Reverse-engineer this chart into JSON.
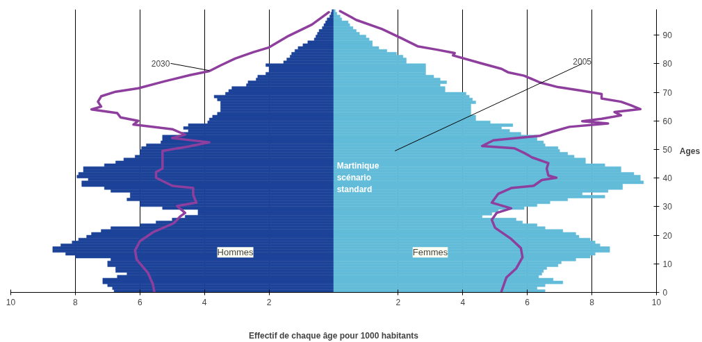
{
  "chart_data": {
    "type": "bar",
    "orientation": "horizontal",
    "xlabel": "Effectif de chaque âge pour 1000 habitants",
    "ylabel": "Ages",
    "x": [
      0,
      1,
      2,
      3,
      4,
      5,
      6,
      7,
      8,
      9,
      10,
      11,
      12,
      13,
      14,
      15,
      16,
      17,
      18,
      19,
      20,
      21,
      22,
      23,
      24,
      25,
      26,
      27,
      28,
      29,
      30,
      31,
      32,
      33,
      34,
      35,
      36,
      37,
      38,
      39,
      40,
      41,
      42,
      43,
      44,
      45,
      46,
      47,
      48,
      49,
      50,
      51,
      52,
      53,
      54,
      55,
      56,
      57,
      58,
      59,
      60,
      61,
      62,
      63,
      64,
      65,
      66,
      67,
      68,
      69,
      70,
      71,
      72,
      73,
      74,
      75,
      76,
      77,
      78,
      79,
      80,
      81,
      82,
      83,
      84,
      85,
      86,
      87,
      88,
      89,
      90,
      91,
      92,
      93,
      94,
      95,
      96,
      97,
      98
    ],
    "xlim": [
      -10,
      10
    ],
    "xticks": [
      {
        "value": -10,
        "label": "10"
      },
      {
        "value": -8,
        "label": "8"
      },
      {
        "value": -6,
        "label": "6"
      },
      {
        "value": -4,
        "label": "4"
      },
      {
        "value": -2,
        "label": "2"
      },
      2,
      4,
      6,
      8,
      10
    ],
    "ylim": [
      0,
      99
    ],
    "yticks": [
      0,
      10,
      20,
      30,
      40,
      50,
      60,
      70,
      80,
      90
    ],
    "grid": "x",
    "stacked": true,
    "series": [
      {
        "name": "Hommes",
        "color": "#1c4398",
        "values": [
          -6.8,
          -6.85,
          -7.0,
          -7.15,
          -7.15,
          -6.7,
          -6.4,
          -6.75,
          -6.75,
          -7.0,
          -7.0,
          -6.9,
          -8.0,
          -8.3,
          -8.7,
          -8.7,
          -8.45,
          -8.1,
          -7.9,
          -7.65,
          -7.5,
          -7.2,
          -6.9,
          -6.0,
          -5.5,
          -5.0,
          -4.6,
          -4.2,
          -4.2,
          -5.3,
          -6.0,
          -6.0,
          -6.4,
          -6.3,
          -6.3,
          -6.9,
          -7.1,
          -7.8,
          -7.8,
          -7.6,
          -7.95,
          -7.9,
          -7.75,
          -7.75,
          -7.1,
          -6.75,
          -6.5,
          -6.15,
          -6.0,
          -6.0,
          -5.95,
          -5.8,
          -5.35,
          -5.3,
          -5.3,
          -4.7,
          -4.5,
          -4.65,
          -4.5,
          -3.9,
          -3.85,
          -3.75,
          -3.6,
          -3.5,
          -3.5,
          -3.5,
          -3.5,
          -3.6,
          -3.7,
          -3.35,
          -3.25,
          -3.15,
          -2.7,
          -2.65,
          -2.4,
          -2.35,
          -2.1,
          -2.0,
          -2.0,
          -2.1,
          -1.55,
          -1.45,
          -1.35,
          -1.3,
          -1.2,
          -1.1,
          -0.95,
          -0.8,
          -0.6,
          -0.55,
          -0.5,
          -0.45,
          -0.35,
          -0.3,
          -0.25,
          -0.2,
          -0.12,
          -0.08,
          -0.05
        ]
      },
      {
        "name": "Femmes",
        "color": "#62bcd9",
        "values": [
          6.55,
          6.3,
          6.55,
          7.1,
          6.8,
          6.35,
          6.45,
          6.5,
          6.6,
          6.95,
          7.05,
          7.5,
          7.95,
          8.1,
          8.55,
          8.55,
          8.25,
          8.1,
          7.95,
          7.6,
          7.5,
          7.1,
          6.55,
          6.3,
          5.85,
          5.65,
          4.6,
          4.9,
          5.1,
          5.9,
          6.3,
          6.7,
          7.25,
          8.4,
          7.7,
          8.5,
          8.95,
          8.95,
          9.6,
          9.5,
          9.5,
          9.3,
          8.9,
          8.9,
          8.4,
          7.8,
          7.8,
          7.45,
          7.25,
          7.0,
          6.95,
          6.55,
          6.5,
          6.3,
          6.3,
          5.8,
          5.45,
          5.2,
          5.55,
          4.85,
          4.4,
          4.4,
          4.25,
          4.25,
          4.25,
          4.25,
          4.4,
          4.3,
          4.2,
          4.1,
          3.45,
          3.45,
          3.3,
          3.5,
          3.3,
          3.1,
          2.85,
          2.85,
          2.85,
          2.85,
          2.25,
          2.25,
          2.15,
          1.95,
          1.65,
          1.4,
          1.2,
          1.2,
          1.1,
          1.0,
          0.8,
          0.7,
          0.6,
          0.5,
          0.45,
          0.25,
          0.2,
          0.1,
          0.05
        ]
      },
      {
        "type": "line",
        "color": "#8e3f9e",
        "x": [
          98,
          93.7,
          89.7,
          85.7,
          84,
          81.8,
          79.4,
          77.4,
          76,
          73.8,
          71.4,
          70.2,
          68.6,
          66.7,
          65,
          64,
          62.7,
          61.2,
          60,
          58.7,
          57.1,
          55.2,
          54,
          52.5,
          51,
          49.5,
          48.4,
          45.6,
          43.3,
          42.1,
          40.1,
          37.3,
          36.5,
          34.1,
          31.4,
          30.2,
          27.8,
          26.6,
          24.2,
          21,
          17.9,
          14.7,
          11.5,
          6.8,
          2.9,
          0
        ],
        "values": [
          -0.15,
          -0.67,
          -1.4,
          -2.0,
          -2.5,
          -3.05,
          -3.5,
          -3.85,
          -4.45,
          -5.25,
          -6.05,
          -6.75,
          -7.2,
          -7.3,
          -7.2,
          -7.5,
          -6.7,
          -6.6,
          -6.05,
          -6.2,
          -5.0,
          -4.6,
          -5.0,
          -3.85,
          -4.5,
          -5.3,
          -5.3,
          -5.3,
          -5.3,
          -5.5,
          -5.5,
          -5.0,
          -4.35,
          -4.35,
          -4.25,
          -4.85,
          -4.6,
          -4.75,
          -4.95,
          -5.6,
          -6.0,
          -6.15,
          -6.1,
          -5.75,
          -5.6,
          -5.55
        ]
      },
      {
        "type": "line",
        "color": "#8e3f9e",
        "x": [
          98.4,
          95.3,
          92.1,
          88.9,
          86.1,
          84.9,
          83.7,
          82.9,
          80.2,
          78.2,
          77,
          75.8,
          73.4,
          71.8,
          70.6,
          69.4,
          67.8,
          66.7,
          65.5,
          64.1,
          63.1,
          61.9,
          60.7,
          59.9,
          59.1,
          57.9,
          56.3,
          54.8,
          53.2,
          51.2,
          50.4,
          48.8,
          47.2,
          45.2,
          43.3,
          40.9,
          40.1,
          39.3,
          37.3,
          36.5,
          34.5,
          31.4,
          29.4,
          27.8,
          25.4,
          22.6,
          18.7,
          15.5,
          12.3,
          8.3,
          5.2,
          0.4
        ],
        "values": [
          0.2,
          0.7,
          1.5,
          2.1,
          2.6,
          3.2,
          3.75,
          3.7,
          4.55,
          5.2,
          5.4,
          5.9,
          6.4,
          6.95,
          7.65,
          8.3,
          8.3,
          8.9,
          9.2,
          9.5,
          8.7,
          8.9,
          8.3,
          7.7,
          8.5,
          7.3,
          6.8,
          6.4,
          4.95,
          4.6,
          5.6,
          5.9,
          6.15,
          6.65,
          6.6,
          6.65,
          6.9,
          6.45,
          6.2,
          5.5,
          5.1,
          4.9,
          5.5,
          5.05,
          4.9,
          5.0,
          5.5,
          5.8,
          5.85,
          5.65,
          5.35,
          5.2
        ]
      }
    ],
    "annotations": [
      {
        "text": "2030",
        "x": -3.85,
        "y": 77.6
      },
      {
        "text": "2005",
        "x": 1.9,
        "y": 49.5
      },
      "Martinique scénario standard"
    ]
  }
}
